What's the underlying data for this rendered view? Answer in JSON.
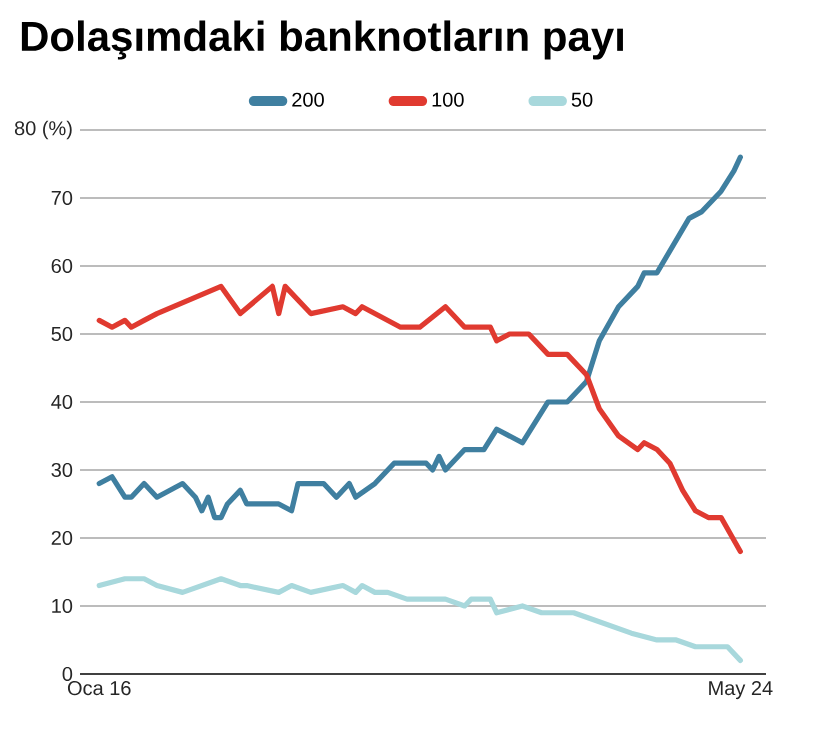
{
  "chart_data": {
    "type": "line",
    "title": "Dolaşımdaki banknotların payı",
    "xlim": [
      "2015-10",
      "2024-09"
    ],
    "xticks": [
      {
        "value": "2016-01",
        "label": "Oca 16"
      },
      {
        "value": "2024-05",
        "label": "May 24"
      }
    ],
    "ylim": [
      0,
      80
    ],
    "yticks": [
      0,
      10,
      20,
      30,
      40,
      50,
      60,
      70,
      {
        "value": 80,
        "label": "80 (%)"
      }
    ],
    "grid": "y",
    "legend": "top",
    "marker": "none",
    "line_style": "solid",
    "series": [
      {
        "name": "200",
        "color": "#3f7fa0",
        "x": [
          "2016-01",
          "2016-03",
          "2016-05",
          "2016-06",
          "2016-08",
          "2016-10",
          "2017-02",
          "2017-04",
          "2017-05",
          "2017-06",
          "2017-07",
          "2017-08",
          "2017-09",
          "2017-11",
          "2017-12",
          "2018-05",
          "2018-07",
          "2018-08",
          "2018-12",
          "2019-02",
          "2019-04",
          "2019-05",
          "2019-08",
          "2019-11",
          "2020-01",
          "2020-04",
          "2020-05",
          "2020-06",
          "2020-07",
          "2020-10",
          "2021-01",
          "2021-03",
          "2021-07",
          "2021-11",
          "2022-02",
          "2022-05",
          "2022-07",
          "2022-10",
          "2023-01",
          "2023-02",
          "2023-04",
          "2023-09",
          "2023-11",
          "2024-02",
          "2024-04",
          "2024-05"
        ],
        "values": [
          28,
          29,
          26,
          26,
          28,
          26,
          28,
          26,
          24,
          26,
          23,
          23,
          25,
          27,
          25,
          25,
          24,
          28,
          28,
          26,
          28,
          26,
          28,
          31,
          31,
          31,
          30,
          32,
          30,
          33,
          33,
          36,
          34,
          40,
          40,
          43,
          49,
          54,
          57,
          59,
          59,
          67,
          68,
          71,
          74,
          76
        ]
      },
      {
        "name": "100",
        "color": "#e03a30",
        "x": [
          "2016-01",
          "2016-03",
          "2016-05",
          "2016-06",
          "2016-08",
          "2016-10",
          "2017-08",
          "2017-11",
          "2018-04",
          "2018-05",
          "2018-06",
          "2018-10",
          "2019-03",
          "2019-05",
          "2019-06",
          "2019-12",
          "2020-03",
          "2020-07",
          "2020-10",
          "2021-02",
          "2021-03",
          "2021-05",
          "2021-08",
          "2021-11",
          "2022-02",
          "2022-05",
          "2022-07",
          "2022-10",
          "2023-01",
          "2023-02",
          "2023-04",
          "2023-06",
          "2023-08",
          "2023-10",
          "2023-12",
          "2024-02",
          "2024-05"
        ],
        "values": [
          52,
          51,
          52,
          51,
          52,
          53,
          57,
          53,
          57,
          53,
          57,
          53,
          54,
          53,
          54,
          51,
          51,
          54,
          51,
          51,
          49,
          50,
          50,
          47,
          47,
          44,
          39,
          35,
          33,
          34,
          33,
          31,
          27,
          24,
          23,
          23,
          18
        ]
      },
      {
        "name": "50",
        "color": "#a8d8dc",
        "x": [
          "2016-01",
          "2016-05",
          "2016-06",
          "2016-08",
          "2016-10",
          "2017-02",
          "2017-08",
          "2017-11",
          "2017-12",
          "2018-05",
          "2018-07",
          "2018-10",
          "2019-03",
          "2019-05",
          "2019-06",
          "2019-08",
          "2019-10",
          "2020-01",
          "2020-07",
          "2020-10",
          "2020-11",
          "2021-02",
          "2021-03",
          "2021-07",
          "2021-10",
          "2022-03",
          "2022-06",
          "2022-12",
          "2023-04",
          "2023-07",
          "2023-10",
          "2024-01",
          "2024-03",
          "2024-05"
        ],
        "values": [
          13,
          14,
          14,
          14,
          13,
          12,
          14,
          13,
          13,
          12,
          13,
          12,
          13,
          12,
          13,
          12,
          12,
          11,
          11,
          10,
          11,
          11,
          9,
          10,
          9,
          9,
          8,
          6,
          5,
          5,
          4,
          4,
          4,
          2
        ]
      }
    ]
  }
}
